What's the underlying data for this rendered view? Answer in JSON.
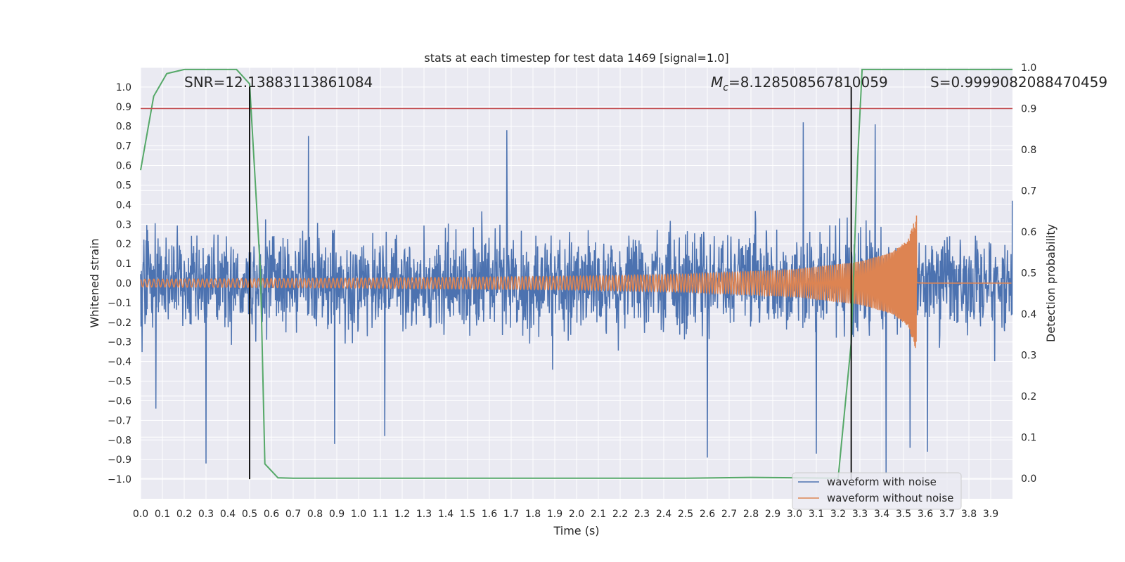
{
  "chart_data": {
    "type": "line",
    "title": "stats at each timestep for test data 1469 [signal=1.0]",
    "xlabel": "Time (s)",
    "ylabel": "Whitened strain",
    "ylabel_right": "Detection probability",
    "xlim": [
      0.0,
      4.0
    ],
    "ylim": [
      -1.1,
      1.1
    ],
    "ylim_right": [
      -0.05,
      1.0
    ],
    "x_ticks": [
      "0.0",
      "0.1",
      "0.2",
      "0.3",
      "0.4",
      "0.5",
      "0.6",
      "0.7",
      "0.8",
      "0.9",
      "1.0",
      "1.1",
      "1.2",
      "1.3",
      "1.4",
      "1.5",
      "1.6",
      "1.7",
      "1.8",
      "1.9",
      "2.0",
      "2.1",
      "2.2",
      "2.3",
      "2.4",
      "2.5",
      "2.6",
      "2.7",
      "2.8",
      "2.9",
      "3.0",
      "3.1",
      "3.2",
      "3.3",
      "3.4",
      "3.5",
      "3.6",
      "3.7",
      "3.8",
      "3.9"
    ],
    "y_ticks": [
      "1.0",
      "0.9",
      "0.8",
      "0.7",
      "0.6",
      "0.5",
      "0.4",
      "0.3",
      "0.2",
      "0.1",
      "0.0",
      "−0.1",
      "−0.2",
      "−0.3",
      "−0.4",
      "−0.5",
      "−0.6",
      "−0.7",
      "−0.8",
      "−0.9",
      "−1.0"
    ],
    "y_right_ticks": [
      "1.0",
      "0.9",
      "0.8",
      "0.7",
      "0.6",
      "0.5",
      "0.4",
      "0.3",
      "0.2",
      "0.1",
      "0.0"
    ],
    "grid": true,
    "legend": "lower-right",
    "annotations": {
      "snr": "SNR=12.13883113861084",
      "mc_symbol": "M",
      "mc_sub": "c",
      "mc_value": "=8.128508567810059",
      "s": "S=0.9999082088470459"
    },
    "series": [
      {
        "name": "waveform with noise",
        "color": "#4c72b0",
        "description_of_values": "noisy strain, amplitude mostly within ±0.5, spikes up to ~0.82 and down to ~-0.97",
        "spikes": [
          {
            "x": 0.07,
            "y": -0.64
          },
          {
            "x": 0.3,
            "y": -0.92
          },
          {
            "x": 0.77,
            "y": 0.75
          },
          {
            "x": 0.89,
            "y": -0.82
          },
          {
            "x": 1.12,
            "y": -0.78
          },
          {
            "x": 1.68,
            "y": 0.78
          },
          {
            "x": 2.6,
            "y": -0.89
          },
          {
            "x": 3.04,
            "y": 0.82
          },
          {
            "x": 3.1,
            "y": -0.87
          },
          {
            "x": 3.37,
            "y": 0.81
          },
          {
            "x": 3.42,
            "y": -0.97
          },
          {
            "x": 3.53,
            "y": -0.84
          },
          {
            "x": 3.61,
            "y": -0.86
          }
        ]
      },
      {
        "name": "waveform without noise",
        "color": "#dd8452",
        "description_of_values": "chirp signal, amplitude 0.02 at t=0 growing to ~0.35 peak near t=3.56, then flat near 0",
        "envelope": [
          {
            "x": 0.0,
            "y": 0.02
          },
          {
            "x": 1.0,
            "y": 0.025
          },
          {
            "x": 2.0,
            "y": 0.035
          },
          {
            "x": 2.5,
            "y": 0.045
          },
          {
            "x": 3.0,
            "y": 0.07
          },
          {
            "x": 3.3,
            "y": 0.11
          },
          {
            "x": 3.45,
            "y": 0.16
          },
          {
            "x": 3.52,
            "y": 0.22
          },
          {
            "x": 3.56,
            "y": 0.35
          },
          {
            "x": 3.57,
            "y": 0.0
          }
        ],
        "merger_time": 3.56
      },
      {
        "name": "",
        "axis": "right",
        "color": "#55a868",
        "values": [
          {
            "x": 0.0,
            "y": 0.75
          },
          {
            "x": 0.06,
            "y": 0.93
          },
          {
            "x": 0.12,
            "y": 0.985
          },
          {
            "x": 0.2,
            "y": 0.995
          },
          {
            "x": 0.3,
            "y": 0.995
          },
          {
            "x": 0.44,
            "y": 0.995
          },
          {
            "x": 0.5,
            "y": 0.96
          },
          {
            "x": 0.55,
            "y": 0.5
          },
          {
            "x": 0.57,
            "y": 0.035
          },
          {
            "x": 0.63,
            "y": 0.001
          },
          {
            "x": 0.7,
            "y": 0.0
          },
          {
            "x": 1.5,
            "y": 0.0
          },
          {
            "x": 2.5,
            "y": 0.0
          },
          {
            "x": 2.8,
            "y": 0.002
          },
          {
            "x": 3.2,
            "y": 0.0
          },
          {
            "x": 3.26,
            "y": 0.33
          },
          {
            "x": 3.29,
            "y": 0.78
          },
          {
            "x": 3.31,
            "y": 0.995
          },
          {
            "x": 3.6,
            "y": 0.995
          },
          {
            "x": 4.0,
            "y": 0.995
          }
        ]
      }
    ],
    "threshold_line": {
      "axis": "right",
      "y": 0.9,
      "color": "#c44e52"
    },
    "vertical_lines": [
      {
        "x": 0.5,
        "y_from": -1.0,
        "y_to": 1.0,
        "color": "#000000"
      },
      {
        "x": 3.26,
        "y_from": -1.0,
        "y_to": 1.0,
        "color": "#000000"
      }
    ]
  }
}
